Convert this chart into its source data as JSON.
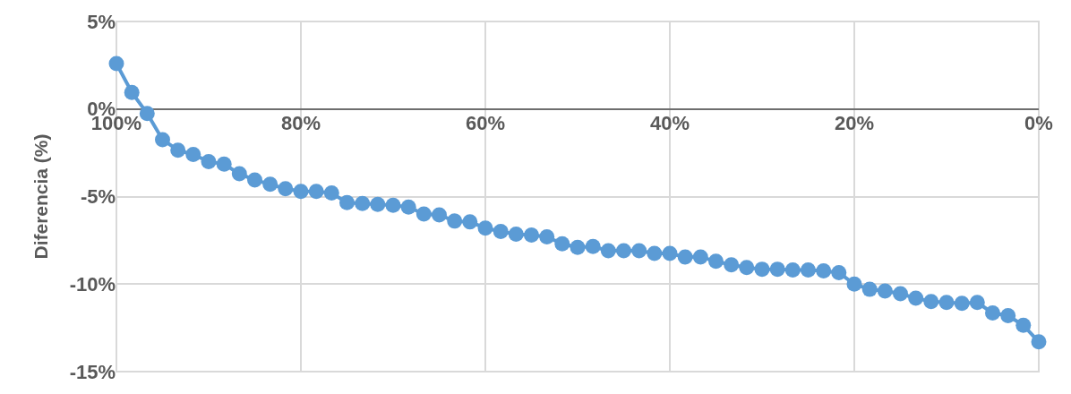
{
  "chart_data": {
    "type": "line",
    "ylabel": "Diferencia (%)",
    "x": [
      100,
      98.33,
      96.67,
      95,
      93.33,
      91.67,
      90,
      88.33,
      86.67,
      85,
      83.33,
      81.67,
      80,
      78.33,
      76.67,
      75,
      73.33,
      71.67,
      70,
      68.33,
      66.67,
      65,
      63.33,
      61.67,
      60,
      58.33,
      56.67,
      55,
      53.33,
      51.67,
      50,
      48.33,
      46.67,
      45,
      43.33,
      41.67,
      40,
      38.33,
      36.67,
      35,
      33.33,
      31.67,
      30,
      28.33,
      26.67,
      25,
      23.33,
      21.67,
      20,
      18.33,
      16.67,
      15,
      13.33,
      11.67,
      10,
      8.33,
      6.67,
      5,
      3.33,
      1.67,
      0
    ],
    "series": [
      {
        "color": "#5b9bd5",
        "values": [
          2.6,
          0.95,
          -0.25,
          -1.75,
          -2.35,
          -2.6,
          -3.0,
          -3.15,
          -3.7,
          -4.05,
          -4.3,
          -4.55,
          -4.7,
          -4.7,
          -4.8,
          -5.35,
          -5.4,
          -5.45,
          -5.5,
          -5.6,
          -6.0,
          -6.05,
          -6.4,
          -6.45,
          -6.8,
          -7.0,
          -7.15,
          -7.2,
          -7.3,
          -7.7,
          -7.9,
          -7.85,
          -8.1,
          -8.1,
          -8.1,
          -8.25,
          -8.25,
          -8.45,
          -8.45,
          -8.7,
          -8.9,
          -9.05,
          -9.15,
          -9.15,
          -9.2,
          -9.2,
          -9.25,
          -9.35,
          -10.0,
          -10.3,
          -10.4,
          -10.55,
          -10.8,
          -11.0,
          -11.05,
          -11.1,
          -11.05,
          -11.65,
          -11.8,
          -12.35,
          -13.3
        ]
      }
    ],
    "xlim": [
      100,
      0
    ],
    "xticks": [
      {
        "value": 100,
        "label": "100%"
      },
      {
        "value": 80,
        "label": "80%"
      },
      {
        "value": 60,
        "label": "60%"
      },
      {
        "value": 40,
        "label": "40%"
      },
      {
        "value": 20,
        "label": "20%"
      },
      {
        "value": 0,
        "label": "0%"
      }
    ],
    "ylim": [
      -15,
      5
    ],
    "yticks": [
      {
        "value": -15,
        "label": "-15%"
      },
      {
        "value": -10,
        "label": "-10%"
      },
      {
        "value": -5,
        "label": "-5%"
      },
      {
        "value": 0,
        "label": "0%"
      },
      {
        "value": 5,
        "label": "5%"
      }
    ],
    "grid": true,
    "marker": "circle",
    "line_style": "solid"
  }
}
